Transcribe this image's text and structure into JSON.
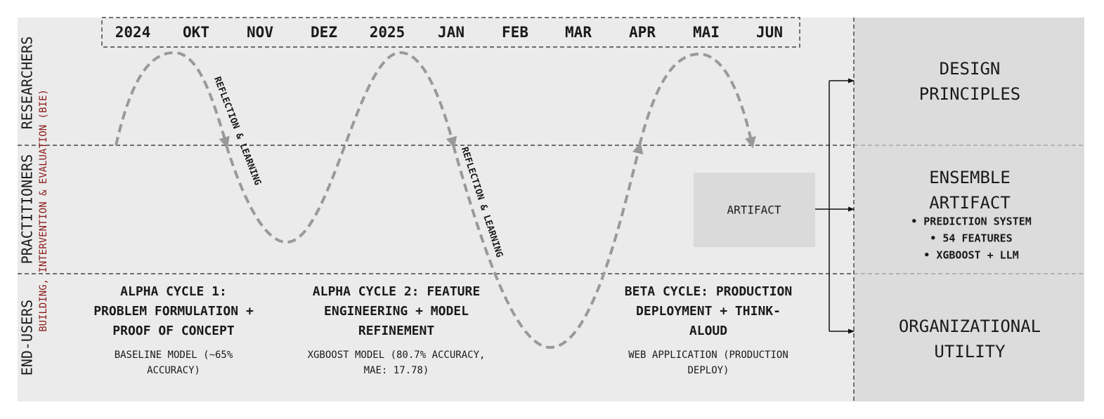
{
  "timeline": {
    "months": [
      "2024",
      "OKT",
      "NOV",
      "DEZ",
      "2025",
      "JAN",
      "FEB",
      "MAR",
      "APR",
      "MAI",
      "JUN"
    ]
  },
  "lanes": [
    "RESEARCHERS",
    "PRACTITIONERS",
    "END-USERS"
  ],
  "side_label": "BUILDING, INTERVENTION & EVALUATION (BIE)",
  "reflection_labels": [
    "REFLECTION & LEARNING",
    "REFLECTION & LEARNING"
  ],
  "cycles": [
    {
      "title": [
        "ALPHA CYCLE 1:",
        "PROBLEM FORMULATION +",
        "PROOF OF CONCEPT"
      ],
      "description": [
        "BASELINE MODEL (~65%",
        "ACCURACY)"
      ]
    },
    {
      "title": [
        "ALPHA CYCLE 2: FEATURE",
        "ENGINEERING + MODEL",
        "REFINEMENT"
      ],
      "description": [
        "XGBOOST MODEL (80.7% ACCURACY,",
        "MAE: 17.78)"
      ]
    },
    {
      "title": [
        "BETA CYCLE: PRODUCTION",
        "DEPLOYMENT + THINK-",
        "ALOUD"
      ],
      "description": [
        "WEB APPLICATION (PRODUCTION",
        "DEPLOY)"
      ]
    }
  ],
  "artifact": "ARTIFACT",
  "outcomes": [
    {
      "title": [
        "DESIGN",
        "PRINCIPLES"
      ],
      "bullets": []
    },
    {
      "title": [
        "ENSEMBLE",
        "ARTIFACT"
      ],
      "bullets": [
        "• PREDICTION SYSTEM",
        "• 54 FEATURES",
        "• XGBOOST + LLM"
      ]
    },
    {
      "title": [
        "ORGANIZATIONAL",
        "UTILITY"
      ],
      "bullets": []
    }
  ]
}
